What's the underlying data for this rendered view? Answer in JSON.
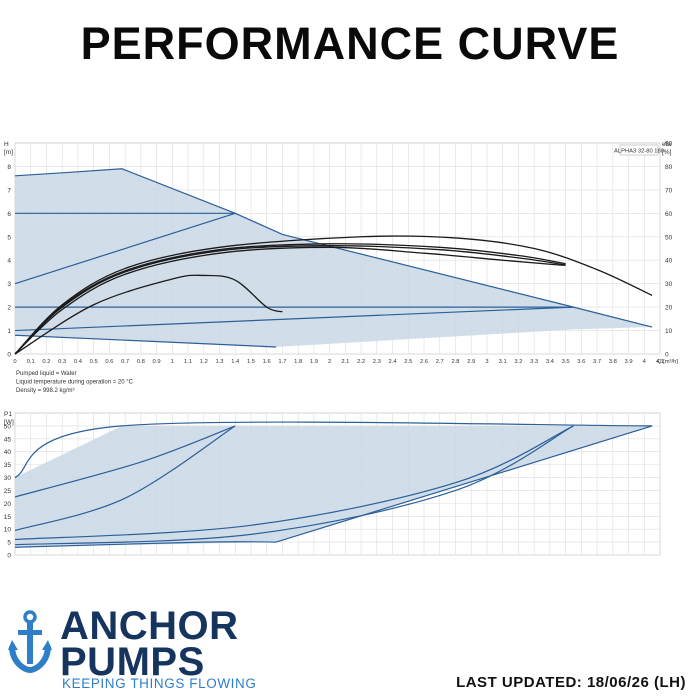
{
  "title": "PERFORMANCE CURVE",
  "footer": {
    "brand_line1": "ANCHOR",
    "brand_line2": "PUMPS",
    "tagline": "KEEPING THINGS FLOWING",
    "last_updated": "LAST UPDATED: 18/06/26 (LH)"
  },
  "colors": {
    "band_fill": "#c9d8e6",
    "blue_line": "#2b5f9a",
    "black_line": "#1a1a1a",
    "grid": "#dddddd",
    "brand_navy": "#15355e",
    "brand_blue": "#2f7fc8"
  },
  "chart_data": [
    {
      "type": "line",
      "model_label": "ALPHA3 32-80 180",
      "ylabel": "H\n[m]",
      "y2label": "eta\n[%]",
      "xlabel": "Q [m³/h]",
      "xlim": [
        0,
        4.1
      ],
      "ylim": [
        0,
        9
      ],
      "y2lim": [
        0,
        90
      ],
      "x_ticks": [
        0,
        0.1,
        0.2,
        0.3,
        0.4,
        0.5,
        0.6,
        0.7,
        0.8,
        0.9,
        1.0,
        1.1,
        1.2,
        1.3,
        1.4,
        1.5,
        1.6,
        1.7,
        1.8,
        1.9,
        2.0,
        2.1,
        2.2,
        2.3,
        2.4,
        2.5,
        2.6,
        2.7,
        2.8,
        2.9,
        3.0,
        3.1,
        3.2,
        3.3,
        3.4,
        3.5,
        3.6,
        3.7,
        3.8,
        3.9,
        4.0,
        4.1
      ],
      "y_ticks": [
        0,
        1,
        2,
        3,
        4,
        5,
        6,
        7,
        8
      ],
      "y2_ticks": [
        0,
        10,
        20,
        30,
        40,
        50,
        60,
        70,
        80,
        90
      ],
      "notes": [
        "Pumped liquid = Water",
        "Liquid temperature during operation = 20 °C",
        "Density = 998.2 kg/m³"
      ],
      "grid": true,
      "envelope": [
        [
          0,
          7.6
        ],
        [
          0.35,
          7.75
        ],
        [
          0.68,
          7.9
        ],
        [
          1.4,
          6.0
        ],
        [
          1.7,
          5.1
        ],
        [
          3.55,
          2.0
        ],
        [
          4.05,
          1.15
        ],
        [
          3.55,
          1.05
        ],
        [
          1.66,
          0.3
        ],
        [
          0,
          0.8
        ]
      ],
      "series": [
        {
          "kind": "blue",
          "points": [
            [
              0,
              7.6
            ],
            [
              0.35,
              7.75
            ],
            [
              0.68,
              7.9
            ],
            [
              1.4,
              6.0
            ],
            [
              1.7,
              5.1
            ],
            [
              3.55,
              2.0
            ],
            [
              4.05,
              1.15
            ]
          ]
        },
        {
          "kind": "blue",
          "points": [
            [
              0,
              6.0
            ],
            [
              1.4,
              6.0
            ]
          ]
        },
        {
          "kind": "blue",
          "points": [
            [
              0,
              3.0
            ],
            [
              1.4,
              6.0
            ]
          ]
        },
        {
          "kind": "blue",
          "points": [
            [
              0,
              2.0
            ],
            [
              3.55,
              2.0
            ]
          ]
        },
        {
          "kind": "blue",
          "points": [
            [
              0,
              1.0
            ],
            [
              3.55,
              2.0
            ]
          ]
        },
        {
          "kind": "blue",
          "points": [
            [
              0,
              0.8
            ],
            [
              1.66,
              0.3
            ]
          ]
        },
        {
          "kind": "black",
          "points": [
            [
              0,
              0
            ],
            [
              0.5,
              2.1
            ],
            [
              1.0,
              3.2
            ],
            [
              1.2,
              3.35
            ],
            [
              1.4,
              3.15
            ],
            [
              1.6,
              2.0
            ],
            [
              1.7,
              1.8
            ]
          ]
        },
        {
          "kind": "black",
          "points": [
            [
              0,
              0
            ],
            [
              0.3,
              1.9
            ],
            [
              0.7,
              3.4
            ],
            [
              1.3,
              4.3
            ],
            [
              2.0,
              4.55
            ],
            [
              2.6,
              4.3
            ],
            [
              3.1,
              4.0
            ],
            [
              3.45,
              3.8
            ],
            [
              3.5,
              3.8
            ]
          ]
        },
        {
          "kind": "black",
          "points": [
            [
              0,
              0
            ],
            [
              0.3,
              2.0
            ],
            [
              0.7,
              3.5
            ],
            [
              1.3,
              4.4
            ],
            [
              2.0,
              4.62
            ],
            [
              2.7,
              4.45
            ],
            [
              3.2,
              4.1
            ],
            [
              3.5,
              3.8
            ]
          ]
        },
        {
          "kind": "black",
          "points": [
            [
              0,
              0
            ],
            [
              0.3,
              2.05
            ],
            [
              0.7,
              3.55
            ],
            [
              1.3,
              4.45
            ],
            [
              2.0,
              4.7
            ],
            [
              2.7,
              4.55
            ],
            [
              3.2,
              4.2
            ],
            [
              3.5,
              3.85
            ]
          ]
        },
        {
          "kind": "black",
          "points": [
            [
              0,
              0
            ],
            [
              0.3,
              2.1
            ],
            [
              0.7,
              3.65
            ],
            [
              1.3,
              4.55
            ],
            [
              2.2,
              5.0
            ],
            [
              2.8,
              4.95
            ],
            [
              3.3,
              4.5
            ],
            [
              3.7,
              3.6
            ],
            [
              4.05,
              2.5
            ]
          ]
        }
      ]
    },
    {
      "type": "line",
      "ylabel": "P1\n[W]",
      "xlim": [
        0,
        4.1
      ],
      "ylim": [
        0,
        55
      ],
      "y_ticks": [
        0,
        5,
        10,
        15,
        20,
        25,
        30,
        35,
        40,
        45,
        50
      ],
      "grid": true,
      "envelope": [
        [
          0,
          30
        ],
        [
          0.68,
          50
        ],
        [
          4.05,
          50
        ],
        [
          1.66,
          5
        ],
        [
          0,
          3
        ]
      ],
      "series": [
        {
          "kind": "blue",
          "points": [
            [
              0,
              30
            ],
            [
              0.68,
              50
            ],
            [
              4.05,
              50
            ]
          ]
        },
        {
          "kind": "blue",
          "points": [
            [
              0,
              22.5
            ],
            [
              0.8,
              36
            ],
            [
              1.4,
              50
            ]
          ]
        },
        {
          "kind": "blue",
          "points": [
            [
              0,
              9.5
            ],
            [
              0.7,
              22
            ],
            [
              1.4,
              50
            ]
          ]
        },
        {
          "kind": "blue",
          "points": [
            [
              0,
              6
            ],
            [
              1.5,
              11.5
            ],
            [
              2.8,
              28
            ],
            [
              3.55,
              50
            ]
          ]
        },
        {
          "kind": "blue",
          "points": [
            [
              0,
              4
            ],
            [
              1.5,
              8
            ],
            [
              2.8,
              25
            ],
            [
              3.55,
              50
            ]
          ]
        },
        {
          "kind": "blue",
          "points": [
            [
              0,
              3
            ],
            [
              1.2,
              5
            ],
            [
              1.66,
              5
            ]
          ]
        },
        {
          "kind": "blue",
          "points": [
            [
              1.66,
              5
            ],
            [
              4.05,
              50
            ]
          ]
        }
      ]
    }
  ]
}
